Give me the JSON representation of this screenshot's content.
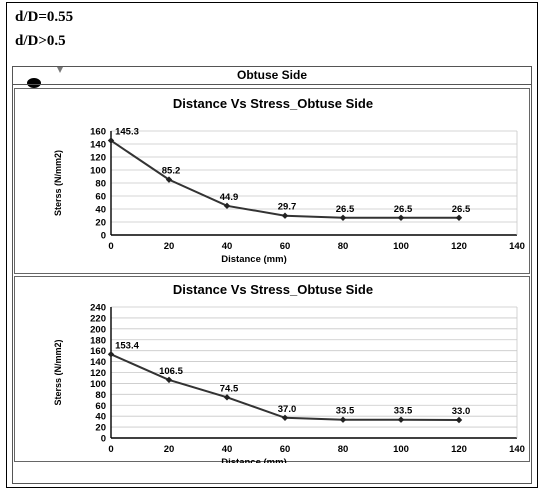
{
  "header": {
    "line1": "d/D=0.55",
    "line2": "d/D>0.5",
    "section_title": "Obtuse Side"
  },
  "chart_data": [
    {
      "type": "line",
      "title": "Distance Vs Stress_Obtuse Side",
      "xlabel": "Distance (mm)",
      "ylabel": "Sterss (N/mm2)",
      "xlim": [
        0,
        140
      ],
      "ylim": [
        0,
        160
      ],
      "xticks": [
        0,
        20,
        40,
        60,
        80,
        100,
        120,
        140
      ],
      "yticks": [
        0,
        20,
        40,
        60,
        80,
        100,
        120,
        140,
        160
      ],
      "grid": true,
      "x": [
        0,
        20,
        40,
        60,
        80,
        100,
        120
      ],
      "values": [
        145.3,
        85.2,
        44.9,
        29.7,
        26.5,
        26.5,
        26.5
      ],
      "labels": [
        "145.3",
        "85.2",
        "44.9",
        "29.7",
        "26.5",
        "26.5",
        "26.5"
      ],
      "line_color": "#333333"
    },
    {
      "type": "line",
      "title": "Distance Vs Stress_Obtuse  Side",
      "xlabel": "Distance (mm)",
      "ylabel": "Sterss (N/mm2)",
      "xlim": [
        0,
        140
      ],
      "ylim": [
        0,
        240
      ],
      "xticks": [
        0,
        20,
        40,
        60,
        80,
        100,
        120,
        140
      ],
      "yticks": [
        0,
        20,
        40,
        60,
        80,
        100,
        120,
        140,
        160,
        180,
        200,
        220,
        240
      ],
      "grid": true,
      "x": [
        0,
        20,
        40,
        60,
        80,
        100,
        120
      ],
      "values": [
        153.4,
        106.5,
        74.5,
        37.0,
        33.5,
        33.5,
        33.0
      ],
      "labels": [
        "153.4",
        "106.5",
        "74.5",
        "37.0",
        "33.5",
        "33.5",
        "33.0"
      ],
      "line_color": "#333333"
    }
  ]
}
